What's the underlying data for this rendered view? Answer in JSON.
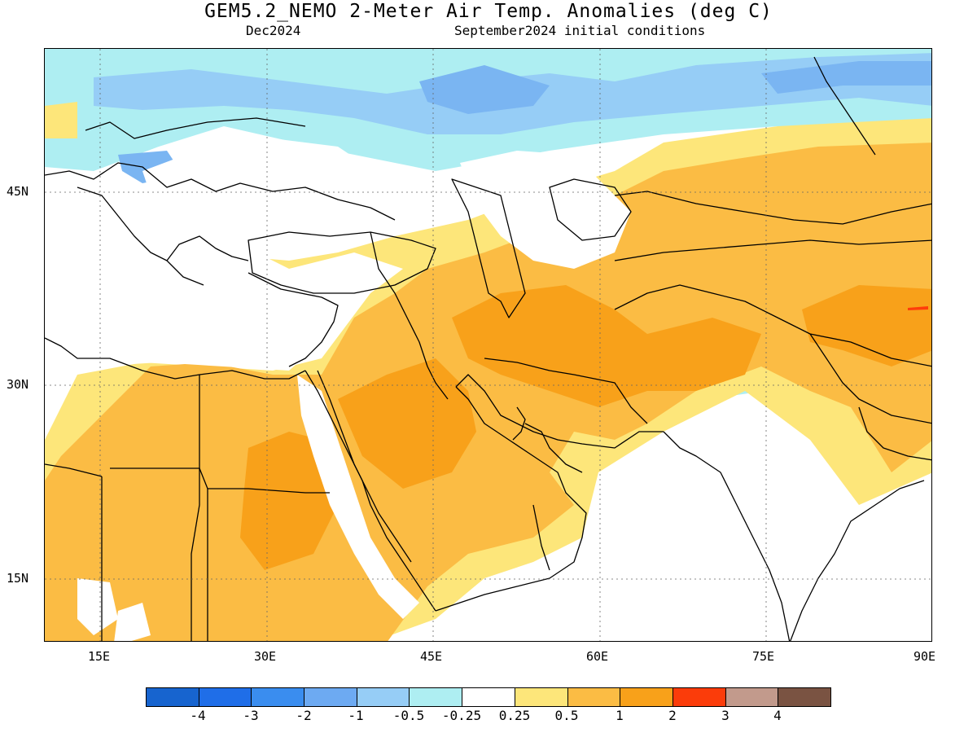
{
  "header": {
    "title": "GEM5.2_NEMO 2-Meter Air Temp. Anomalies (deg C)",
    "valid_month": "Dec2024",
    "init_conditions": "September2024 initial conditions"
  },
  "map": {
    "latitude_labels": [
      "45N",
      "30N",
      "15N"
    ],
    "longitude_labels": [
      "15E",
      "30E",
      "45E",
      "60E",
      "75E",
      "90E"
    ],
    "palette": {
      "warm_0_25_0_5": "#fde67a",
      "warm_0_5_1": "#fbbc44",
      "warm_1_2": "#f8a11a",
      "warm_2_3": "#ff3c0a",
      "cool_m0_5_m0_25": "#aeeef2",
      "cool_m1_m0_5": "#96cdf6",
      "cool_m2_m1": "#7ab5f2",
      "coast": "#000000"
    }
  },
  "colorbar": {
    "colors": [
      "#1764cf",
      "#1f6ee8",
      "#3a8def",
      "#6daaf2",
      "#96cdf6",
      "#aeeef2",
      "#ffffff",
      "#fde67a",
      "#fbbc44",
      "#f8a11a",
      "#fb3c0a",
      "#c29a8c",
      "#7a5342"
    ],
    "labels": [
      "-4",
      "-3",
      "-2",
      "-1",
      "-0.5",
      "-0.25",
      "0.25",
      "0.5",
      "1",
      "2",
      "3",
      "4"
    ]
  }
}
